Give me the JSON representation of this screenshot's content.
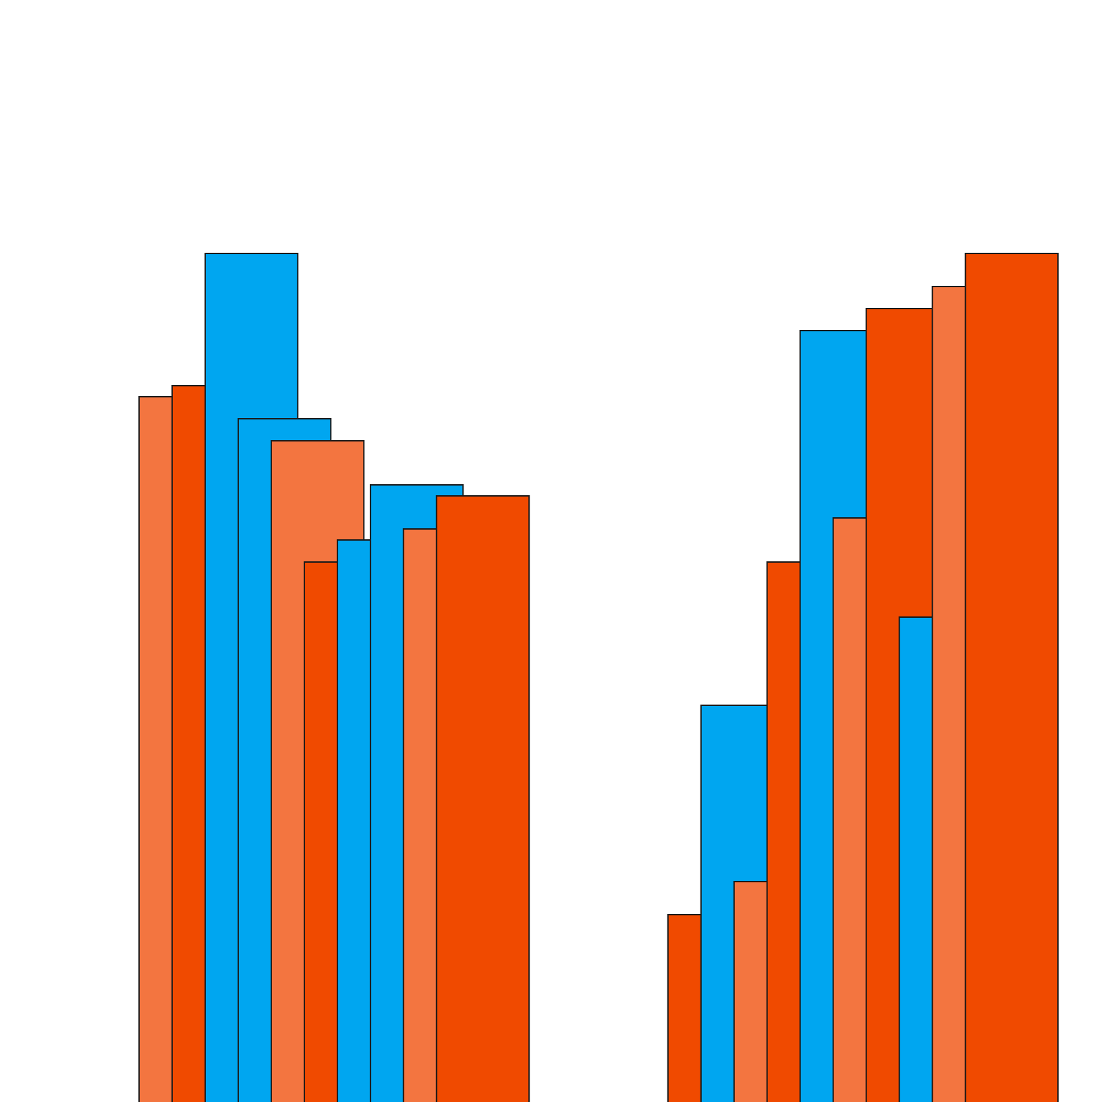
{
  "chart_data": {
    "type": "bar",
    "grid": false,
    "legend": "none",
    "axes_visible": false,
    "colors": {
      "light_orange": "#F37540",
      "orange": "#F04A00",
      "blue": "#00A6F0"
    },
    "ylim": [
      0,
      1
    ],
    "groups": [
      {
        "bars": [
          {
            "x": 0.0,
            "value": 0.64,
            "color": "light_orange"
          },
          {
            "x": 0.5,
            "value": 0.65,
            "color": "orange"
          },
          {
            "x": 1.0,
            "value": 0.77,
            "color": "blue"
          },
          {
            "x": 1.5,
            "value": 0.62,
            "color": "blue"
          },
          {
            "x": 2.0,
            "value": 0.6,
            "color": "light_orange"
          },
          {
            "x": 2.5,
            "value": 0.49,
            "color": "orange"
          },
          {
            "x": 3.0,
            "value": 0.51,
            "color": "blue"
          },
          {
            "x": 3.5,
            "value": 0.56,
            "color": "blue"
          },
          {
            "x": 4.0,
            "value": 0.52,
            "color": "light_orange"
          },
          {
            "x": 4.5,
            "value": 0.55,
            "color": "orange"
          }
        ]
      },
      {
        "bars": [
          {
            "x": 8.0,
            "value": 0.17,
            "color": "orange"
          },
          {
            "x": 8.5,
            "value": 0.36,
            "color": "blue"
          },
          {
            "x": 9.0,
            "value": 0.2,
            "color": "light_orange"
          },
          {
            "x": 9.5,
            "value": 0.49,
            "color": "orange"
          },
          {
            "x": 10.0,
            "value": 0.7,
            "color": "blue"
          },
          {
            "x": 10.5,
            "value": 0.53,
            "color": "light_orange"
          },
          {
            "x": 11.0,
            "value": 0.72,
            "color": "orange"
          },
          {
            "x": 11.5,
            "value": 0.44,
            "color": "blue"
          },
          {
            "x": 12.0,
            "value": 0.74,
            "color": "light_orange"
          },
          {
            "x": 12.5,
            "value": 0.77,
            "color": "orange"
          }
        ]
      }
    ],
    "bar_width": 1.4,
    "xlim": [
      -0.02,
      12.92
    ]
  }
}
